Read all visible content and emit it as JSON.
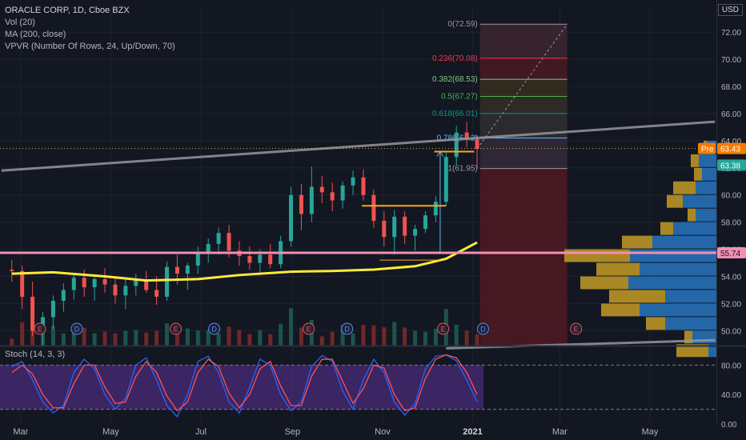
{
  "legend": {
    "title": "ORACLE CORP, 1D, Cboe BZX",
    "vol": "Vol (20)",
    "ma": "MA (200, close)",
    "vpvr": "VPVR (Number Of Rows, 24, Up/Down, 70)"
  },
  "currency": "USD",
  "stoch_label": "Stoch (14, 3, 3)",
  "colors": {
    "background": "#131722",
    "up": "#26a69a",
    "down": "#ef5350",
    "ma": "#ffeb3b",
    "support": "#f48fb1",
    "trendline": "#9598a1",
    "stoch_k": "#2962ff",
    "stoch_d": "#ff5252",
    "stoch_fill": "#4a2b7a",
    "vp_up": "#2670b8",
    "vp_down": "#c49b25"
  },
  "chart_data": [
    {
      "type": "candlestick",
      "title": "ORACLE CORP, 1D, Cboe BZX",
      "x_tick_labels": [
        "Mar",
        "May",
        "Jul",
        "Sep",
        "Nov",
        "2021",
        "Mar",
        "May"
      ],
      "y_tick_labels": [
        "72.00",
        "70.00",
        "68.00",
        "66.00",
        "64.00",
        "62.00",
        "60.00",
        "58.00",
        "56.00",
        "54.00",
        "52.00",
        "50.00"
      ],
      "ylim": [
        48.9,
        73.9
      ],
      "price_labels": {
        "pre_label": "Pre",
        "pre": "63.43",
        "last": "63.38",
        "support": "55.74"
      },
      "fib_levels": [
        {
          "label": "0(72.59)",
          "value": 72.59
        },
        {
          "label": "0.236(70.08)",
          "value": 70.08
        },
        {
          "label": "0.382(68.53)",
          "value": 68.53
        },
        {
          "label": "0.5(67.27)",
          "value": 67.27
        },
        {
          "label": "0.618(66.01)",
          "value": 66.01
        },
        {
          "label": "0.786(64.2)",
          "value": 64.2
        },
        {
          "label": "1(61.95)",
          "value": 61.95
        }
      ],
      "support_level": 55.74,
      "earnings_marker": "E",
      "dividend_marker": "D",
      "volume_profile": [
        {
          "price": 63.5,
          "up": 0.06,
          "down": 0.02
        },
        {
          "price": 62.5,
          "up": 0.11,
          "down": 0.05
        },
        {
          "price": 61.5,
          "up": 0.09,
          "down": 0.05
        },
        {
          "price": 60.5,
          "up": 0.13,
          "down": 0.14
        },
        {
          "price": 59.5,
          "up": 0.21,
          "down": 0.1
        },
        {
          "price": 58.5,
          "up": 0.13,
          "down": 0.05
        },
        {
          "price": 57.5,
          "up": 0.27,
          "down": 0.08
        },
        {
          "price": 56.5,
          "up": 0.4,
          "down": 0.19
        },
        {
          "price": 55.5,
          "up": 0.54,
          "down": 0.41
        },
        {
          "price": 54.5,
          "up": 0.48,
          "down": 0.27
        },
        {
          "price": 53.5,
          "up": 0.55,
          "down": 0.3
        },
        {
          "price": 52.5,
          "up": 0.32,
          "down": 0.35
        },
        {
          "price": 51.5,
          "up": 0.48,
          "down": 0.24
        },
        {
          "price": 50.5,
          "up": 0.32,
          "down": 0.12
        },
        {
          "price": 49.5,
          "up": 0.15,
          "down": 0.05
        },
        {
          "price": 48.5,
          "up": 0.05,
          "down": 0.2
        }
      ],
      "candles": [
        {
          "d": "2020-02-24",
          "o": 54.5,
          "h": 55.2,
          "l": 53.6,
          "c": 54.4
        },
        {
          "d": "2020-03-02",
          "o": 54.4,
          "h": 54.8,
          "l": 51.6,
          "c": 52.5
        },
        {
          "d": "2020-03-09",
          "o": 52.5,
          "h": 53.6,
          "l": 49.6,
          "c": 50.0
        },
        {
          "d": "2020-03-16",
          "o": 50.0,
          "h": 51.4,
          "l": 48.9,
          "c": 51.0
        },
        {
          "d": "2020-03-23",
          "o": 51.0,
          "h": 52.6,
          "l": 50.1,
          "c": 52.2
        },
        {
          "d": "2020-03-30",
          "o": 52.2,
          "h": 53.5,
          "l": 51.4,
          "c": 53.0
        },
        {
          "d": "2020-04-06",
          "o": 53.0,
          "h": 54.2,
          "l": 52.3,
          "c": 53.9
        },
        {
          "d": "2020-04-13",
          "o": 53.9,
          "h": 54.5,
          "l": 52.5,
          "c": 53.2
        },
        {
          "d": "2020-04-20",
          "o": 53.2,
          "h": 54.0,
          "l": 52.2,
          "c": 53.8
        },
        {
          "d": "2020-04-27",
          "o": 53.8,
          "h": 54.6,
          "l": 52.8,
          "c": 53.4
        },
        {
          "d": "2020-05-04",
          "o": 53.4,
          "h": 54.0,
          "l": 52.0,
          "c": 52.6
        },
        {
          "d": "2020-05-11",
          "o": 52.6,
          "h": 53.8,
          "l": 51.6,
          "c": 53.3
        },
        {
          "d": "2020-05-18",
          "o": 53.3,
          "h": 54.2,
          "l": 52.6,
          "c": 53.7
        },
        {
          "d": "2020-05-25",
          "o": 53.7,
          "h": 54.4,
          "l": 52.8,
          "c": 53.0
        },
        {
          "d": "2020-06-01",
          "o": 53.0,
          "h": 54.0,
          "l": 51.9,
          "c": 52.5
        },
        {
          "d": "2020-06-08",
          "o": 52.5,
          "h": 55.1,
          "l": 52.2,
          "c": 54.7
        },
        {
          "d": "2020-06-15",
          "o": 54.7,
          "h": 55.6,
          "l": 53.4,
          "c": 54.2
        },
        {
          "d": "2020-06-22",
          "o": 54.2,
          "h": 55.0,
          "l": 53.0,
          "c": 54.8
        },
        {
          "d": "2020-06-29",
          "o": 54.8,
          "h": 56.2,
          "l": 54.2,
          "c": 55.8
        },
        {
          "d": "2020-07-06",
          "o": 55.8,
          "h": 56.8,
          "l": 55.0,
          "c": 56.4
        },
        {
          "d": "2020-07-13",
          "o": 56.4,
          "h": 57.6,
          "l": 55.6,
          "c": 57.2
        },
        {
          "d": "2020-07-20",
          "o": 57.2,
          "h": 57.8,
          "l": 55.4,
          "c": 55.9
        },
        {
          "d": "2020-07-27",
          "o": 55.9,
          "h": 56.6,
          "l": 54.8,
          "c": 55.5
        },
        {
          "d": "2020-08-03",
          "o": 55.5,
          "h": 56.2,
          "l": 54.5,
          "c": 55.0
        },
        {
          "d": "2020-08-10",
          "o": 55.0,
          "h": 56.0,
          "l": 54.3,
          "c": 55.6
        },
        {
          "d": "2020-08-17",
          "o": 55.6,
          "h": 56.4,
          "l": 54.6,
          "c": 54.9
        },
        {
          "d": "2020-08-24",
          "o": 54.9,
          "h": 57.0,
          "l": 54.6,
          "c": 56.6
        },
        {
          "d": "2020-08-31",
          "o": 56.6,
          "h": 60.6,
          "l": 56.2,
          "c": 60.0
        },
        {
          "d": "2020-09-07",
          "o": 60.0,
          "h": 60.8,
          "l": 57.4,
          "c": 58.6
        },
        {
          "d": "2020-09-14",
          "o": 58.6,
          "h": 62.1,
          "l": 58.0,
          "c": 60.6
        },
        {
          "d": "2020-09-21",
          "o": 60.6,
          "h": 61.4,
          "l": 59.4,
          "c": 60.2
        },
        {
          "d": "2020-09-28",
          "o": 60.2,
          "h": 60.9,
          "l": 58.8,
          "c": 59.6
        },
        {
          "d": "2020-10-05",
          "o": 59.6,
          "h": 61.0,
          "l": 59.0,
          "c": 60.7
        },
        {
          "d": "2020-10-12",
          "o": 60.7,
          "h": 61.8,
          "l": 60.0,
          "c": 61.3
        },
        {
          "d": "2020-10-19",
          "o": 61.3,
          "h": 61.9,
          "l": 59.6,
          "c": 60.0
        },
        {
          "d": "2020-10-26",
          "o": 60.0,
          "h": 60.4,
          "l": 57.6,
          "c": 58.1
        },
        {
          "d": "2020-11-02",
          "o": 58.1,
          "h": 58.8,
          "l": 56.2,
          "c": 56.9
        },
        {
          "d": "2020-11-09",
          "o": 56.9,
          "h": 58.9,
          "l": 55.6,
          "c": 58.4
        },
        {
          "d": "2020-11-16",
          "o": 58.4,
          "h": 58.8,
          "l": 56.4,
          "c": 57.0
        },
        {
          "d": "2020-11-23",
          "o": 57.0,
          "h": 57.8,
          "l": 55.9,
          "c": 57.5
        },
        {
          "d": "2020-11-30",
          "o": 57.5,
          "h": 58.8,
          "l": 57.2,
          "c": 58.5
        },
        {
          "d": "2020-12-07",
          "o": 58.5,
          "h": 59.9,
          "l": 58.0,
          "c": 59.5
        },
        {
          "d": "2020-12-14",
          "o": 59.5,
          "h": 63.2,
          "l": 59.2,
          "c": 62.8
        },
        {
          "d": "2020-12-21",
          "o": 62.8,
          "h": 65.1,
          "l": 62.2,
          "c": 64.6
        },
        {
          "d": "2020-12-28",
          "o": 64.6,
          "h": 65.4,
          "l": 63.5,
          "c": 64.1
        },
        {
          "d": "2021-01-04",
          "o": 64.1,
          "h": 64.4,
          "l": 61.9,
          "c": 63.4
        }
      ],
      "ma200": [
        {
          "d": "2020-02-24",
          "v": 54.2
        },
        {
          "d": "2020-03-23",
          "v": 54.3
        },
        {
          "d": "2020-04-27",
          "v": 54.0
        },
        {
          "d": "2020-05-25",
          "v": 53.7
        },
        {
          "d": "2020-06-29",
          "v": 53.8
        },
        {
          "d": "2020-07-27",
          "v": 54.1
        },
        {
          "d": "2020-08-31",
          "v": 54.35
        },
        {
          "d": "2020-09-28",
          "v": 54.4
        },
        {
          "d": "2020-10-26",
          "v": 54.5
        },
        {
          "d": "2020-11-23",
          "v": 54.75
        },
        {
          "d": "2020-12-14",
          "v": 55.3
        },
        {
          "d": "2021-01-04",
          "v": 56.5
        }
      ],
      "trendline_upper": [
        {
          "d": "2020-02-17",
          "v": 61.8
        },
        {
          "d": "2021-06-14",
          "v": 65.4
        }
      ],
      "trendline_lower": [
        {
          "d": "2020-12-14",
          "v": 48.7
        },
        {
          "d": "2021-06-14",
          "v": 49.3
        }
      ],
      "xlabel": "",
      "ylabel": ""
    },
    {
      "type": "line",
      "title": "Stoch (14, 3, 3)",
      "y_tick_labels": [
        "80.00",
        "40.00",
        "0.00"
      ],
      "ylim": [
        0,
        100
      ],
      "bands": [
        20,
        80
      ],
      "series": [
        {
          "name": "%K",
          "values": [
            78,
            85,
            60,
            30,
            15,
            25,
            70,
            88,
            75,
            40,
            20,
            35,
            80,
            90,
            60,
            25,
            10,
            40,
            85,
            92,
            70,
            30,
            15,
            50,
            88,
            80,
            40,
            18,
            30,
            78,
            93,
            85,
            45,
            20,
            60,
            88,
            70,
            30,
            12,
            28,
            75,
            92,
            94,
            86,
            60,
            30
          ]
        },
        {
          "name": "%D",
          "values": [
            70,
            80,
            68,
            40,
            22,
            22,
            55,
            80,
            80,
            50,
            28,
            30,
            65,
            85,
            70,
            38,
            18,
            30,
            70,
            88,
            78,
            42,
            22,
            40,
            75,
            85,
            52,
            25,
            25,
            65,
            88,
            88,
            58,
            28,
            48,
            80,
            76,
            40,
            18,
            22,
            62,
            88,
            94,
            90,
            70,
            40
          ]
        }
      ]
    }
  ]
}
